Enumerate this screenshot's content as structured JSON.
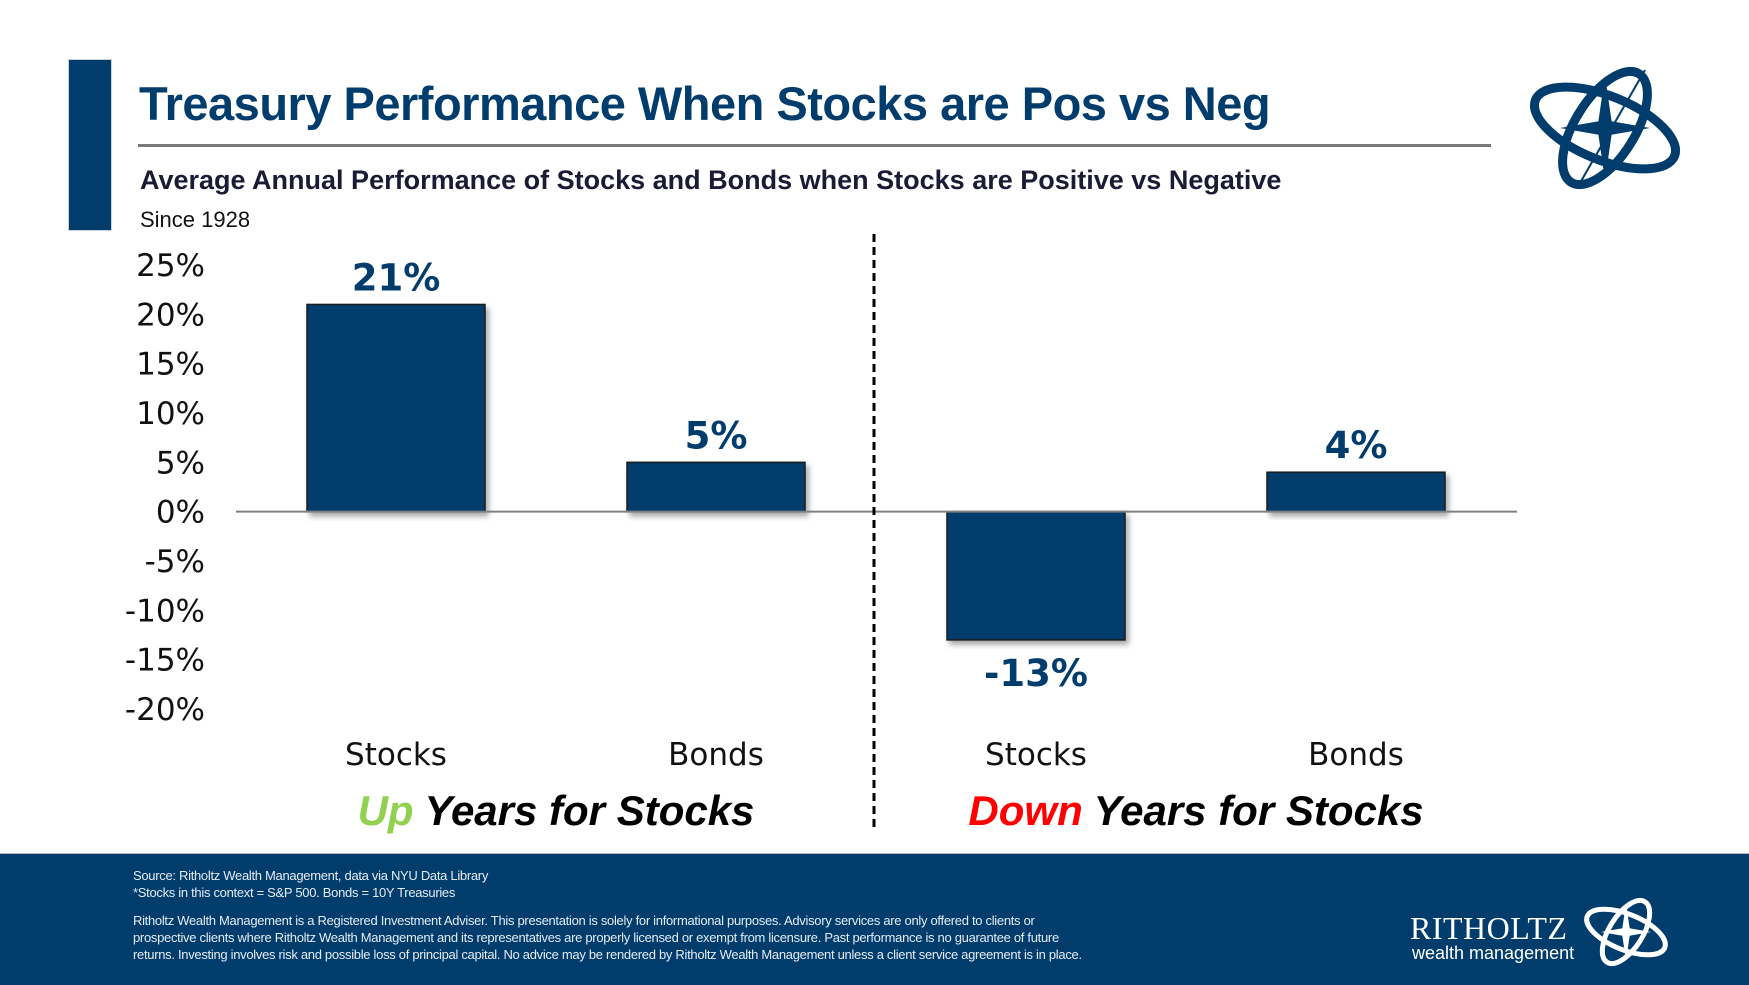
{
  "header": {
    "title": "Treasury Performance When Stocks are Pos vs Neg",
    "subtitle": "Average Annual Performance of Stocks and Bonds when Stocks are Positive vs Negative",
    "since": "Since 1928",
    "logo_icon": "compass-orbit-logo-icon"
  },
  "colors": {
    "navy": "#003C6C",
    "up_green": "#92D050",
    "down_red": "#FF0000",
    "group_text": "#000000",
    "axis_line": "#808080"
  },
  "chart_data": {
    "type": "bar",
    "title": "Treasury Performance When Stocks are Pos vs Neg",
    "subtitle": "Average Annual Performance of Stocks and Bonds when Stocks are Positive vs Negative",
    "xlabel": "",
    "ylabel": "",
    "ylim": [
      -20,
      25
    ],
    "yticks": [
      25,
      20,
      15,
      10,
      5,
      0,
      -5,
      -10,
      -15,
      -20
    ],
    "ytick_labels": [
      "25%",
      "20%",
      "15%",
      "10%",
      "5%",
      "0%",
      "-5%",
      "-10%",
      "-15%",
      "-20%"
    ],
    "grid": false,
    "legend": "none",
    "groups": [
      {
        "label_highlight": "Up",
        "label_rest": " Years for Stocks",
        "highlight_color": "#92D050",
        "categories": [
          "Stocks",
          "Bonds"
        ],
        "values": [
          21,
          5
        ],
        "data_labels": [
          "21%",
          "5%"
        ]
      },
      {
        "label_highlight": "Down",
        "label_rest": " Years for Stocks",
        "highlight_color": "#FF0000",
        "categories": [
          "Stocks",
          "Bonds"
        ],
        "values": [
          -13,
          4
        ],
        "data_labels": [
          "-13%",
          "4%"
        ]
      }
    ],
    "divider": "dashed vertical line between groups"
  },
  "footer": {
    "source": "Source: Ritholtz Wealth Management, data via NYU Data Library",
    "note": "*Stocks in this context = S&P 500. Bonds = 10Y Treasuries",
    "disclaimer_lines": [
      "Ritholtz Wealth Management is a Registered Investment Adviser. This presentation is solely for informational purposes. Advisory services are only offered to clients or",
      "prospective clients where Ritholtz Wealth Management and its representatives are properly licensed or exempt from licensure. Past performance is no guarantee of future",
      "returns. Investing involves risk and possible loss of principal capital. No advice may be rendered by Ritholtz Wealth Management unless a client service agreement is in place."
    ],
    "brand_name": "RITHOLTZ",
    "brand_sub": "wealth management"
  }
}
